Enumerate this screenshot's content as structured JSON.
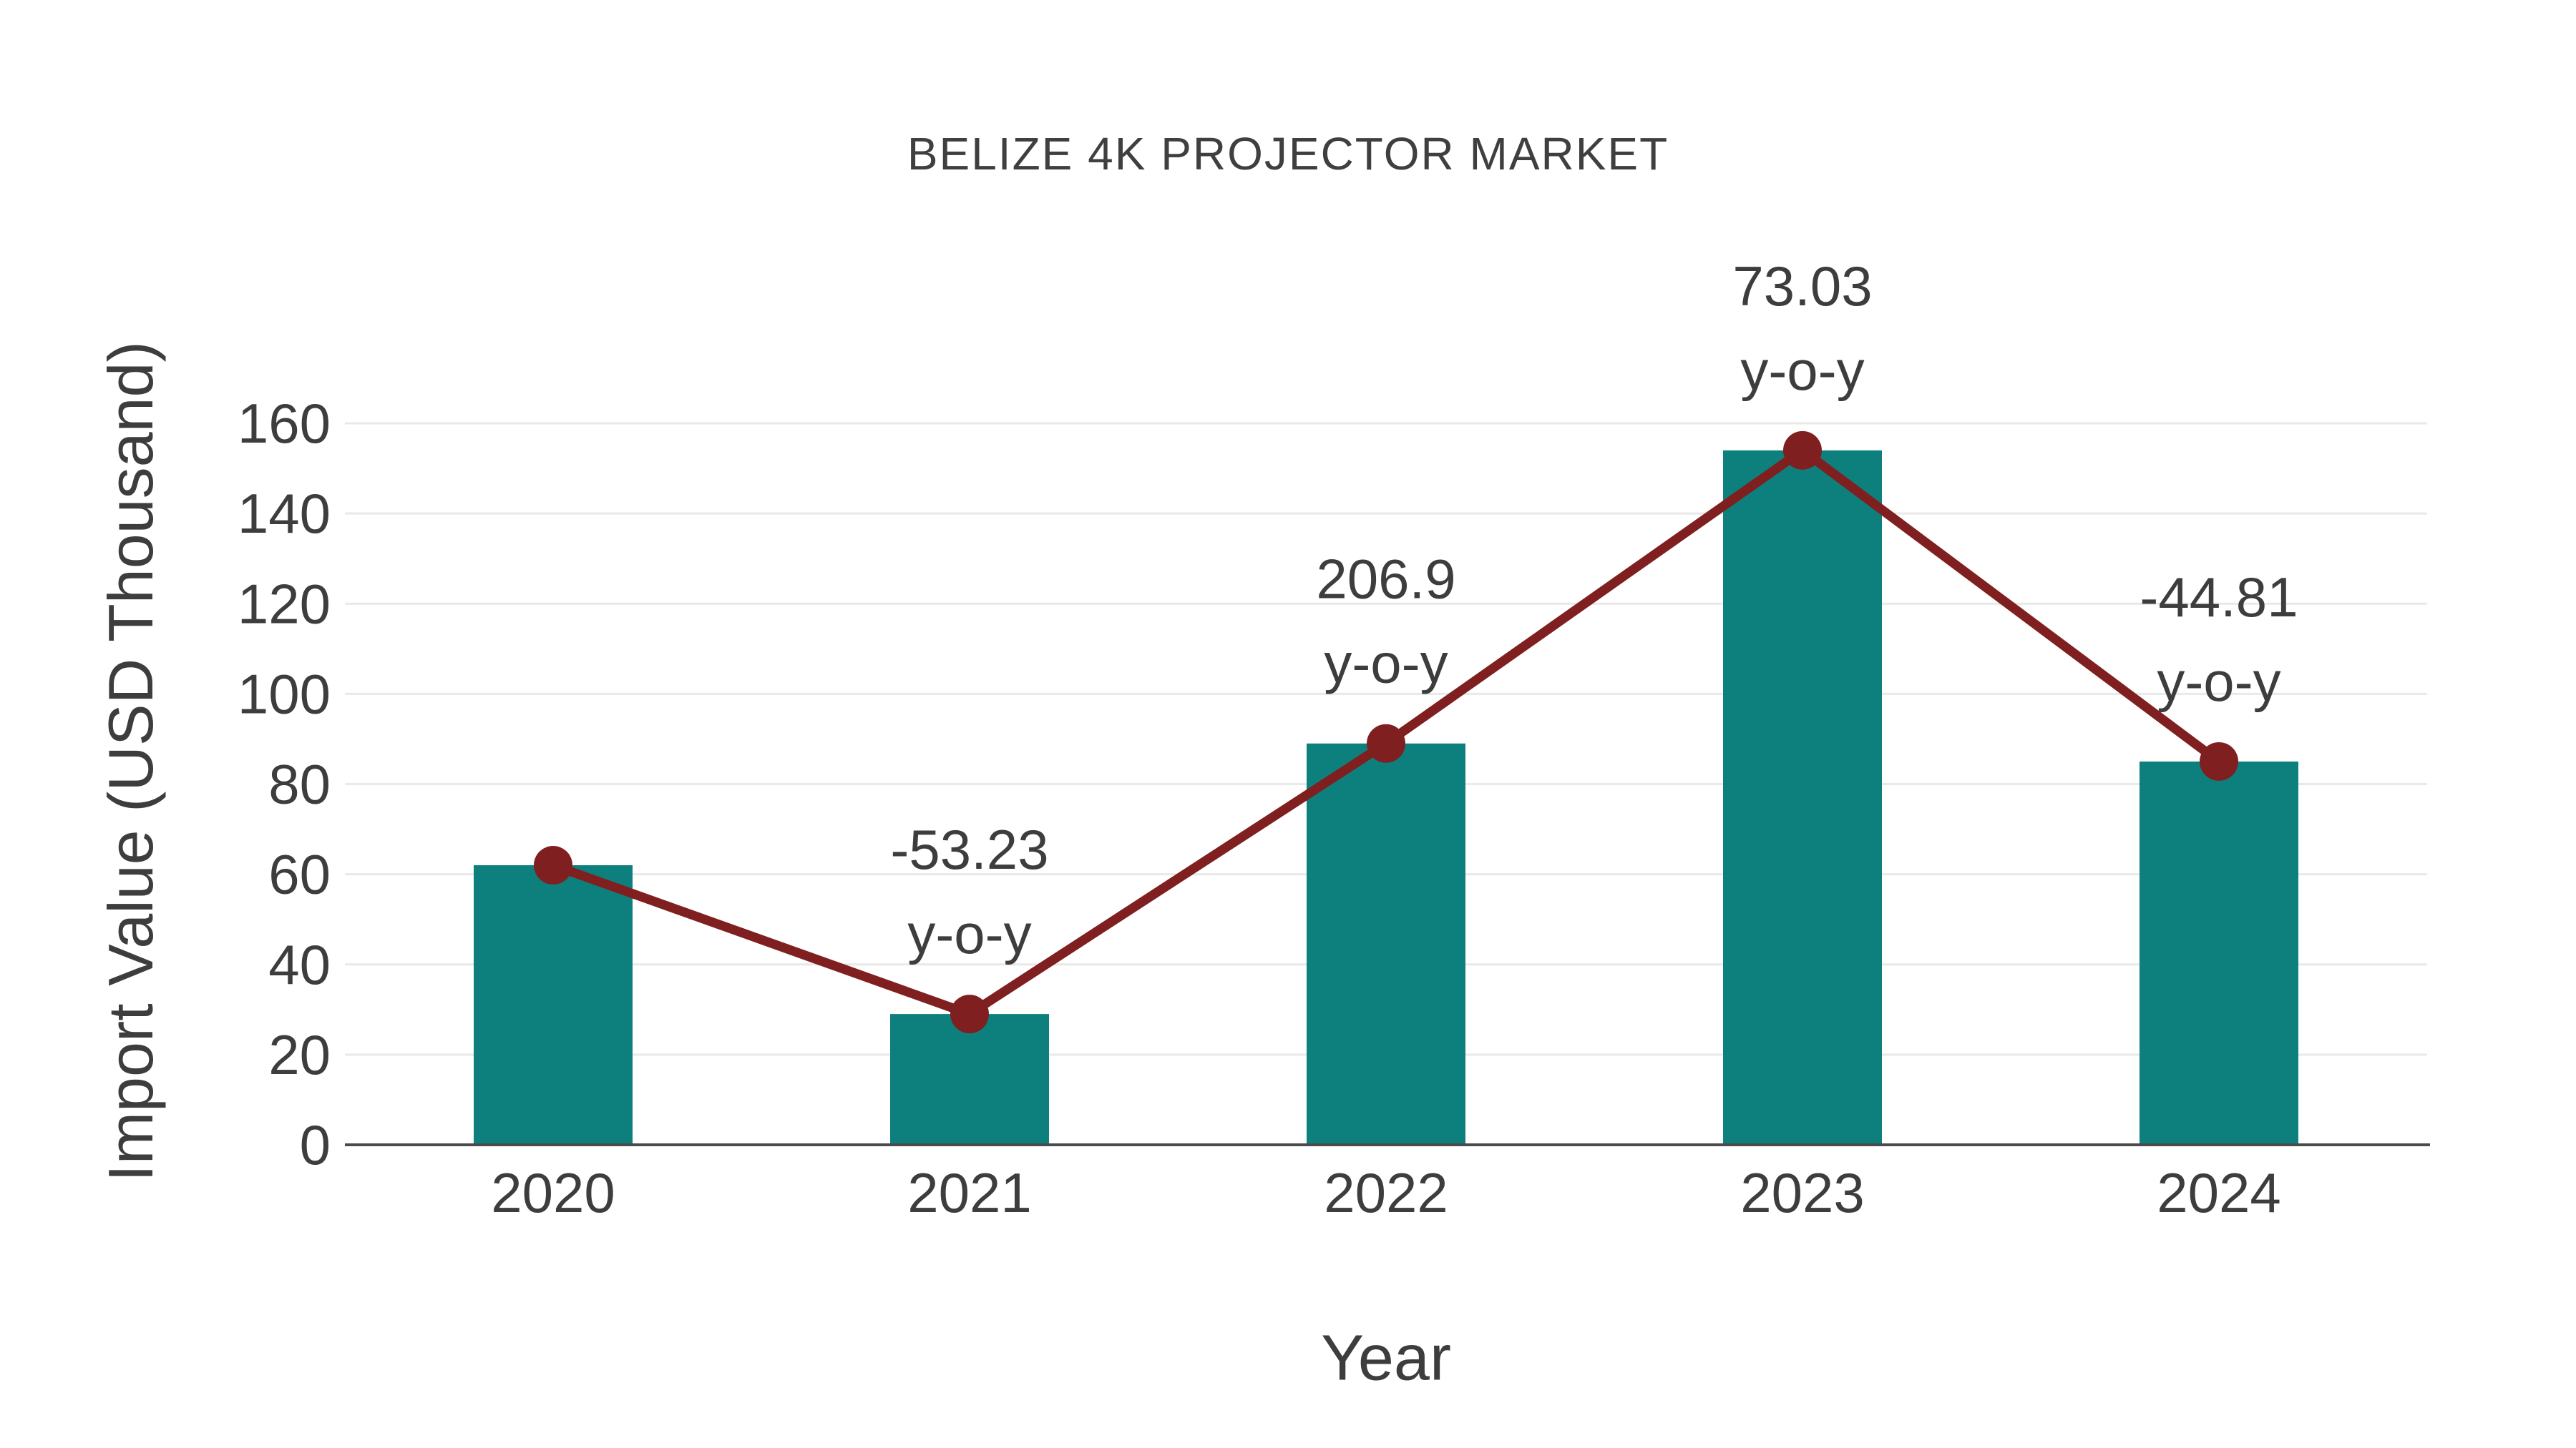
{
  "chart_data": {
    "type": "bar",
    "title": "BELIZE 4K PROJECTOR MARKET",
    "xlabel": "Year",
    "ylabel": "Import Value (USD Thousand)",
    "categories": [
      "2020",
      "2021",
      "2022",
      "2023",
      "2024"
    ],
    "series": [
      {
        "name": "Import Value",
        "type": "bar",
        "color": "#0d807d",
        "values": [
          62,
          29,
          89,
          154,
          85
        ]
      },
      {
        "name": "Import Value trend",
        "type": "line",
        "color": "#801f1f",
        "values": [
          62,
          29,
          89,
          154,
          85
        ]
      }
    ],
    "annotations": [
      {
        "category": "2021",
        "lines": [
          "-53.23",
          "y-o-y"
        ]
      },
      {
        "category": "2022",
        "lines": [
          "206.9",
          "y-o-y"
        ]
      },
      {
        "category": "2023",
        "lines": [
          "73.03",
          "y-o-y"
        ]
      },
      {
        "category": "2024",
        "lines": [
          "-44.81",
          "y-o-y"
        ]
      }
    ],
    "yticks": [
      0,
      20,
      40,
      60,
      80,
      100,
      120,
      140,
      160
    ],
    "ylim": [
      0,
      160
    ],
    "grid": true,
    "legend": false,
    "colors": {
      "bar": "#0d807d",
      "line": "#801f1f",
      "grid": "#e9e9e9",
      "axis": "#4b4b4b",
      "text": "#3d3d3d",
      "background": "#ffffff"
    }
  }
}
